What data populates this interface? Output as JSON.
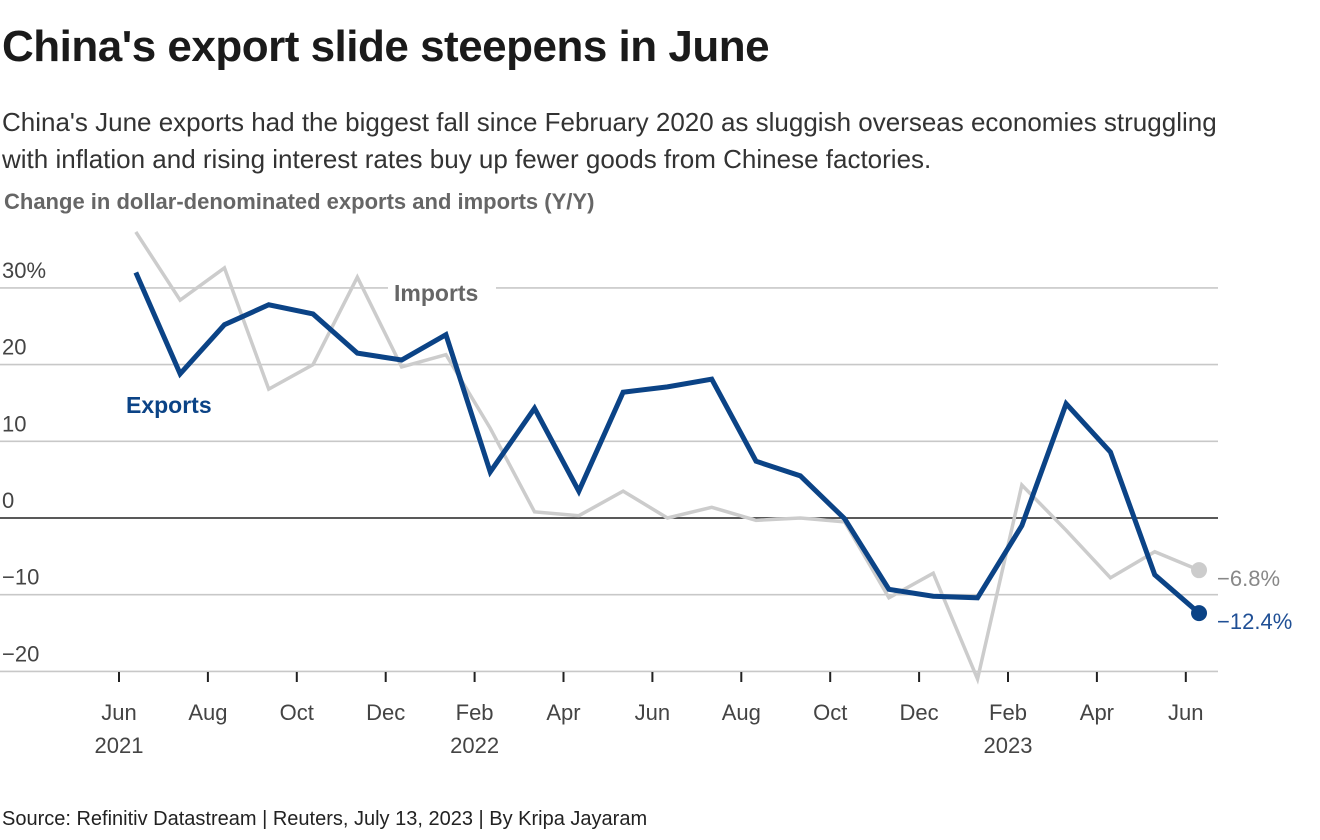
{
  "title": "China's export slide steepens in June",
  "subtitle": "China's June exports had the biggest fall since February 2020 as sluggish overseas economies struggling with inflation and rising interest rates buy up fewer goods from Chinese factories.",
  "source": "Source: Refinitiv Datastream | Reuters, July 13, 2023 | By Kripa Jayaram",
  "chart_data": {
    "type": "line",
    "title": "China's export slide steepens in June",
    "ylabel": "Change in dollar-denominated exports and imports (Y/Y)",
    "ylim": [
      -20,
      37
    ],
    "grid": true,
    "y_ticks": [
      {
        "value": 30,
        "label": "30%"
      },
      {
        "value": 20,
        "label": "20"
      },
      {
        "value": 10,
        "label": "10"
      },
      {
        "value": 0,
        "label": "0"
      },
      {
        "value": -10,
        "label": "−10"
      },
      {
        "value": -20,
        "label": "−20"
      }
    ],
    "x": [
      "Jun 2021",
      "Jul 2021",
      "Aug 2021",
      "Sep 2021",
      "Oct 2021",
      "Nov 2021",
      "Dec 2021",
      "Jan 2022",
      "Feb 2022",
      "Mar 2022",
      "Apr 2022",
      "May 2022",
      "Jun 2022",
      "Jul 2022",
      "Aug 2022",
      "Sep 2022",
      "Oct 2022",
      "Nov 2022",
      "Dec 2022",
      "Jan 2023",
      "Feb 2023",
      "Mar 2023",
      "Apr 2023",
      "May 2023",
      "Jun 2023"
    ],
    "x_ticks": [
      {
        "index": 0,
        "label": "Jun",
        "year": "2021"
      },
      {
        "index": 2,
        "label": "Aug",
        "year": ""
      },
      {
        "index": 4,
        "label": "Oct",
        "year": ""
      },
      {
        "index": 6,
        "label": "Dec",
        "year": ""
      },
      {
        "index": 8,
        "label": "Feb",
        "year": "2022"
      },
      {
        "index": 10,
        "label": "Apr",
        "year": ""
      },
      {
        "index": 12,
        "label": "Jun",
        "year": ""
      },
      {
        "index": 14,
        "label": "Aug",
        "year": ""
      },
      {
        "index": 16,
        "label": "Oct",
        "year": ""
      },
      {
        "index": 18,
        "label": "Dec",
        "year": ""
      },
      {
        "index": 20,
        "label": "Feb",
        "year": "2023"
      },
      {
        "index": 22,
        "label": "Apr",
        "year": ""
      },
      {
        "index": 24,
        "label": "Jun",
        "year": ""
      }
    ],
    "series": [
      {
        "name": "Imports",
        "color": "#cccccc",
        "end_label": "−6.8%",
        "label_color": "#888888",
        "values": [
          37.3,
          28.4,
          32.6,
          16.8,
          20.0,
          31.4,
          19.7,
          21.3,
          11.7,
          0.8,
          0.3,
          3.5,
          0.0,
          1.4,
          -0.3,
          0.0,
          -0.5,
          -10.4,
          -7.2,
          -21.0,
          4.3,
          -1.6,
          -7.8,
          -4.4,
          -6.8
        ]
      },
      {
        "name": "Exports",
        "color": "#0b4386",
        "end_label": "−12.4%",
        "label_color": "#1f4f95",
        "values": [
          32.0,
          18.8,
          25.2,
          27.8,
          26.6,
          21.5,
          20.6,
          23.9,
          6.0,
          14.3,
          3.5,
          16.4,
          17.1,
          18.1,
          7.4,
          5.5,
          -0.1,
          -9.3,
          -10.2,
          -10.4,
          -1.0,
          14.9,
          8.6,
          -7.4,
          -12.4
        ]
      }
    ]
  }
}
